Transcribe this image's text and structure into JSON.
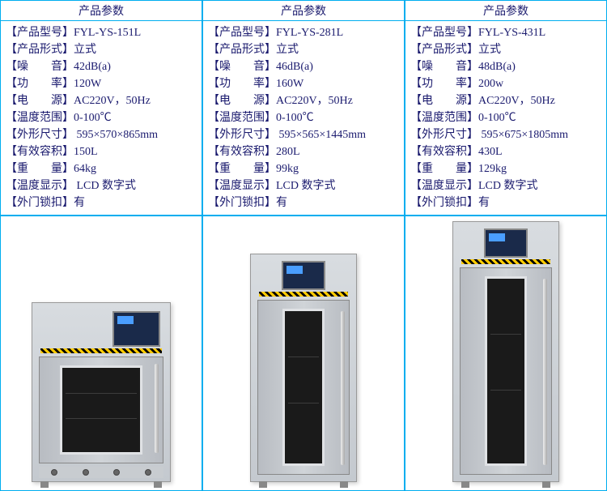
{
  "header_text": "产品参数",
  "spec_labels": {
    "model": "【产品型号】",
    "form": "【产品形式】",
    "noise": "【噪　　音】",
    "power": "【功　　率】",
    "supply": "【电　　源】",
    "temp": "【温度范围】",
    "dims": "【外形尺寸】",
    "volume": "【有效容积】",
    "weight": "【重　　量】",
    "display": "【温度显示】",
    "lock": "【外门锁扣】"
  },
  "products": [
    {
      "model": "FYL-YS-151L",
      "form": "立式",
      "noise": "42dB(a)",
      "power": "120W",
      "supply": "AC220V，50Hz",
      "temp": "0-100℃",
      "dims": " 595×570×865mm",
      "volume": "150L",
      "weight": "64kg",
      "display": " LCD 数字式",
      "lock": "有"
    },
    {
      "model": "FYL-YS-281L",
      "form": "立式",
      "noise": "46dB(a)",
      "power": "160W",
      "supply": "AC220V，50Hz",
      "temp": "0-100℃",
      "dims": " 595×565×1445mm",
      "volume": "280L",
      "weight": "99kg",
      "display": "LCD 数字式",
      "lock": "有"
    },
    {
      "model": "FYL-YS-431L",
      "form": "立式",
      "noise": "48dB(a)",
      "power": "200w",
      "supply": "AC220V，50Hz",
      "temp": "0-100℃",
      "dims": " 595×675×1805mm",
      "volume": "430L",
      "weight": "129kg",
      "display": "LCD 数字式",
      "lock": "有"
    }
  ]
}
